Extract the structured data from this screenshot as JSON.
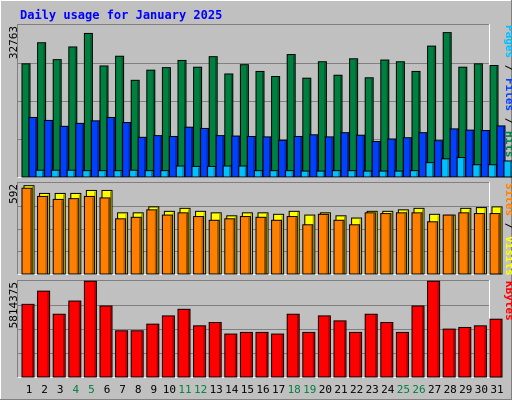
{
  "chart_data": [
    {
      "type": "bar",
      "title": "Daily usage for January 2025",
      "categories": [
        "1",
        "2",
        "3",
        "4",
        "5",
        "6",
        "7",
        "8",
        "9",
        "10",
        "11",
        "12",
        "13",
        "14",
        "15",
        "16",
        "17",
        "18",
        "19",
        "20",
        "21",
        "22",
        "23",
        "24",
        "25",
        "26",
        "27",
        "28",
        "29",
        "30",
        "31"
      ],
      "weekend_days": [
        "4",
        "5",
        "11",
        "12",
        "18",
        "19",
        "25",
        "26"
      ],
      "y_tick_label": "32763",
      "ylim": [
        0,
        36000
      ],
      "axis_labels": [
        {
          "text": "Pages",
          "color": "#00c0ff"
        },
        {
          "text": "Files",
          "color": "#0040ff"
        },
        {
          "text": "Hits",
          "color": "#008040"
        }
      ],
      "series": [
        {
          "name": "Hits",
          "color": "#008040",
          "values": [
            26800,
            31800,
            27800,
            30800,
            34000,
            26300,
            28600,
            22900,
            25300,
            25900,
            27600,
            26000,
            28500,
            24400,
            26600,
            25000,
            23800,
            29000,
            23400,
            27300,
            24100,
            28000,
            23500,
            27700,
            27300,
            25000,
            31000,
            34200,
            26000,
            26800,
            26400
          ]
        },
        {
          "name": "Files",
          "color": "#0040ff",
          "values": [
            14100,
            13400,
            12000,
            12700,
            13300,
            14100,
            12900,
            9400,
            9800,
            9600,
            11800,
            11500,
            9800,
            9700,
            9600,
            9500,
            8700,
            9600,
            10000,
            9500,
            10500,
            9900,
            8400,
            9000,
            9300,
            10500,
            8600,
            11400,
            11100,
            11000,
            12100
          ]
        },
        {
          "name": "Pages",
          "color": "#00c0ff",
          "values": [
            1600,
            1600,
            1600,
            1500,
            1500,
            1500,
            1600,
            1500,
            1500,
            2600,
            2500,
            2500,
            2600,
            2600,
            1500,
            1500,
            1500,
            1400,
            1400,
            1500,
            1500,
            1400,
            1400,
            1400,
            1500,
            3400,
            4300,
            4600,
            2900,
            2900,
            3800
          ]
        }
      ]
    },
    {
      "type": "bar",
      "categories": [
        "1",
        "2",
        "3",
        "4",
        "5",
        "6",
        "7",
        "8",
        "9",
        "10",
        "11",
        "12",
        "13",
        "14",
        "15",
        "16",
        "17",
        "18",
        "19",
        "20",
        "21",
        "22",
        "23",
        "24",
        "25",
        "26",
        "27",
        "28",
        "29",
        "30",
        "31"
      ],
      "y_tick_label": "592",
      "ylim": [
        0,
        610
      ],
      "axis_labels": [
        {
          "text": "Sites",
          "color": "#ff8000"
        },
        {
          "text": "Visits",
          "color": "#ffff00"
        }
      ],
      "series": [
        {
          "name": "Visits",
          "color": "#ffff00",
          "values": [
            592,
            540,
            540,
            540,
            560,
            560,
            410,
            410,
            450,
            420,
            440,
            420,
            410,
            390,
            410,
            410,
            400,
            420,
            395,
            410,
            390,
            375,
            420,
            420,
            430,
            440,
            400,
            395,
            440,
            445,
            450
          ]
        },
        {
          "name": "Sites",
          "color": "#ff8000",
          "values": [
            575,
            520,
            500,
            505,
            520,
            510,
            370,
            380,
            430,
            395,
            410,
            385,
            360,
            370,
            385,
            380,
            360,
            385,
            330,
            400,
            360,
            330,
            410,
            405,
            410,
            410,
            350,
            395,
            410,
            405,
            405
          ]
        }
      ]
    },
    {
      "type": "bar",
      "categories": [
        "1",
        "2",
        "3",
        "4",
        "5",
        "6",
        "7",
        "8",
        "9",
        "10",
        "11",
        "12",
        "13",
        "14",
        "15",
        "16",
        "17",
        "18",
        "19",
        "20",
        "21",
        "22",
        "23",
        "24",
        "25",
        "26",
        "27",
        "28",
        "29",
        "30",
        "31"
      ],
      "y_tick_label": "5814375",
      "ylim": [
        0,
        5814375
      ],
      "axis_labels": [
        {
          "text": "KBytes",
          "color": "#ff0000"
        }
      ],
      "series": [
        {
          "name": "KBytes",
          "color": "#ff0000",
          "values": [
            4400000,
            5200000,
            3800000,
            4600000,
            5800000,
            4300000,
            2800000,
            2800000,
            3200000,
            3700000,
            4100000,
            3100000,
            3300000,
            2600000,
            2700000,
            2700000,
            2600000,
            3800000,
            2700000,
            3700000,
            3400000,
            2700000,
            3800000,
            3300000,
            2700000,
            4300000,
            5800000,
            2900000,
            3000000,
            3100000,
            3500000
          ]
        }
      ]
    }
  ]
}
